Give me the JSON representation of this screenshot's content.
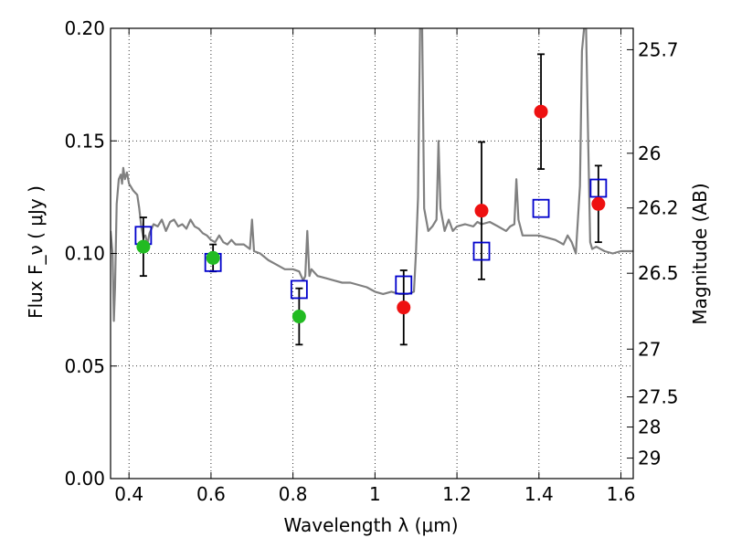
{
  "chart_data": {
    "type": "scatter",
    "xlabel": "Wavelength  λ (μm)",
    "ylabel": "Flux  F_ν  ( μJy )",
    "ylabel_right": "Magnitude (AB)",
    "xlim": [
      0.355,
      1.63
    ],
    "ylim": [
      0.0,
      0.2
    ],
    "xticks": [
      0.4,
      0.6,
      0.8,
      1.0,
      1.2,
      1.4,
      1.6
    ],
    "xtick_labels": [
      "0.4",
      "0.6",
      "0.8",
      "1",
      "1.2",
      "1.4",
      "1.6"
    ],
    "yticks": [
      0.0,
      0.05,
      0.1,
      0.15,
      0.2
    ],
    "ytick_labels": [
      "0.00",
      "0.05",
      "0.10",
      "0.15",
      "0.20"
    ],
    "right_ticks": [
      {
        "label": "25.7",
        "flux": 0.1905
      },
      {
        "label": "26",
        "flux": 0.1445
      },
      {
        "label": "26.2",
        "flux": 0.1202
      },
      {
        "label": "26.5",
        "flux": 0.0912
      },
      {
        "label": "27",
        "flux": 0.0575
      },
      {
        "label": "27.5",
        "flux": 0.0363
      },
      {
        "label": "28",
        "flux": 0.0229
      },
      {
        "label": "29",
        "flux": 0.0091
      }
    ],
    "grid": true,
    "series": [
      {
        "kind": "line",
        "color": "#808080",
        "points": [
          [
            0.355,
            0.11
          ],
          [
            0.36,
            0.1
          ],
          [
            0.363,
            0.07
          ],
          [
            0.366,
            0.085
          ],
          [
            0.37,
            0.122
          ],
          [
            0.375,
            0.133
          ],
          [
            0.38,
            0.135
          ],
          [
            0.383,
            0.131
          ],
          [
            0.386,
            0.138
          ],
          [
            0.39,
            0.133
          ],
          [
            0.395,
            0.136
          ],
          [
            0.4,
            0.131
          ],
          [
            0.41,
            0.128
          ],
          [
            0.42,
            0.126
          ],
          [
            0.425,
            0.12
          ],
          [
            0.43,
            0.112
          ],
          [
            0.435,
            0.107
          ],
          [
            0.44,
            0.108
          ],
          [
            0.445,
            0.104
          ],
          [
            0.45,
            0.109
          ],
          [
            0.46,
            0.113
          ],
          [
            0.47,
            0.112
          ],
          [
            0.48,
            0.115
          ],
          [
            0.49,
            0.11
          ],
          [
            0.5,
            0.114
          ],
          [
            0.51,
            0.115
          ],
          [
            0.52,
            0.112
          ],
          [
            0.53,
            0.113
          ],
          [
            0.54,
            0.111
          ],
          [
            0.55,
            0.115
          ],
          [
            0.56,
            0.112
          ],
          [
            0.57,
            0.111
          ],
          [
            0.58,
            0.109
          ],
          [
            0.59,
            0.108
          ],
          [
            0.6,
            0.106
          ],
          [
            0.61,
            0.105
          ],
          [
            0.62,
            0.108
          ],
          [
            0.63,
            0.105
          ],
          [
            0.64,
            0.104
          ],
          [
            0.65,
            0.106
          ],
          [
            0.66,
            0.104
          ],
          [
            0.68,
            0.104
          ],
          [
            0.695,
            0.102
          ],
          [
            0.7,
            0.115
          ],
          [
            0.705,
            0.101
          ],
          [
            0.72,
            0.1
          ],
          [
            0.74,
            0.097
          ],
          [
            0.76,
            0.095
          ],
          [
            0.78,
            0.093
          ],
          [
            0.8,
            0.093
          ],
          [
            0.815,
            0.092
          ],
          [
            0.82,
            0.09
          ],
          [
            0.825,
            0.088
          ],
          [
            0.83,
            0.09
          ],
          [
            0.835,
            0.11
          ],
          [
            0.84,
            0.09
          ],
          [
            0.845,
            0.093
          ],
          [
            0.86,
            0.09
          ],
          [
            0.88,
            0.089
          ],
          [
            0.9,
            0.088
          ],
          [
            0.92,
            0.087
          ],
          [
            0.94,
            0.087
          ],
          [
            0.96,
            0.086
          ],
          [
            0.98,
            0.085
          ],
          [
            1.0,
            0.083
          ],
          [
            1.02,
            0.082
          ],
          [
            1.04,
            0.083
          ],
          [
            1.06,
            0.082
          ],
          [
            1.08,
            0.082
          ],
          [
            1.095,
            0.083
          ],
          [
            1.1,
            0.1
          ],
          [
            1.105,
            0.125
          ],
          [
            1.11,
            0.2
          ],
          [
            1.115,
            0.2
          ],
          [
            1.12,
            0.12
          ],
          [
            1.13,
            0.11
          ],
          [
            1.14,
            0.112
          ],
          [
            1.15,
            0.115
          ],
          [
            1.155,
            0.15
          ],
          [
            1.16,
            0.12
          ],
          [
            1.17,
            0.11
          ],
          [
            1.18,
            0.115
          ],
          [
            1.19,
            0.11
          ],
          [
            1.2,
            0.112
          ],
          [
            1.22,
            0.113
          ],
          [
            1.24,
            0.112
          ],
          [
            1.25,
            0.114
          ],
          [
            1.26,
            0.113
          ],
          [
            1.28,
            0.114
          ],
          [
            1.3,
            0.112
          ],
          [
            1.32,
            0.11
          ],
          [
            1.33,
            0.112
          ],
          [
            1.34,
            0.113
          ],
          [
            1.345,
            0.133
          ],
          [
            1.35,
            0.115
          ],
          [
            1.36,
            0.108
          ],
          [
            1.38,
            0.108
          ],
          [
            1.4,
            0.108
          ],
          [
            1.42,
            0.107
          ],
          [
            1.44,
            0.106
          ],
          [
            1.46,
            0.104
          ],
          [
            1.47,
            0.108
          ],
          [
            1.48,
            0.105
          ],
          [
            1.49,
            0.1
          ],
          [
            1.5,
            0.13
          ],
          [
            1.505,
            0.19
          ],
          [
            1.51,
            0.2
          ],
          [
            1.515,
            0.2
          ],
          [
            1.52,
            0.15
          ],
          [
            1.525,
            0.105
          ],
          [
            1.53,
            0.102
          ],
          [
            1.54,
            0.103
          ],
          [
            1.55,
            0.102
          ],
          [
            1.56,
            0.101
          ],
          [
            1.58,
            0.1
          ],
          [
            1.6,
            0.101
          ],
          [
            1.63,
            0.101
          ]
        ]
      },
      {
        "kind": "open-squares",
        "color": "#0000cc",
        "points": [
          [
            0.435,
            0.108
          ],
          [
            0.605,
            0.096
          ],
          [
            0.815,
            0.084
          ],
          [
            1.07,
            0.086
          ],
          [
            1.26,
            0.101
          ],
          [
            1.405,
            0.12
          ],
          [
            1.545,
            0.129
          ]
        ]
      },
      {
        "kind": "filled-circles",
        "color": "#22bb22",
        "points": [
          {
            "x": 0.435,
            "y": 0.103,
            "err": 0.013
          },
          {
            "x": 0.605,
            "y": 0.098,
            "err": 0.006
          },
          {
            "x": 0.815,
            "y": 0.072,
            "err": 0.0125
          }
        ]
      },
      {
        "kind": "filled-circles",
        "color": "#ee1111",
        "points": [
          {
            "x": 1.07,
            "y": 0.076,
            "err": 0.0165
          },
          {
            "x": 1.26,
            "y": 0.119,
            "err": 0.0305
          },
          {
            "x": 1.405,
            "y": 0.163,
            "err": 0.0255
          },
          {
            "x": 1.545,
            "y": 0.122,
            "err": 0.017
          }
        ]
      }
    ]
  }
}
